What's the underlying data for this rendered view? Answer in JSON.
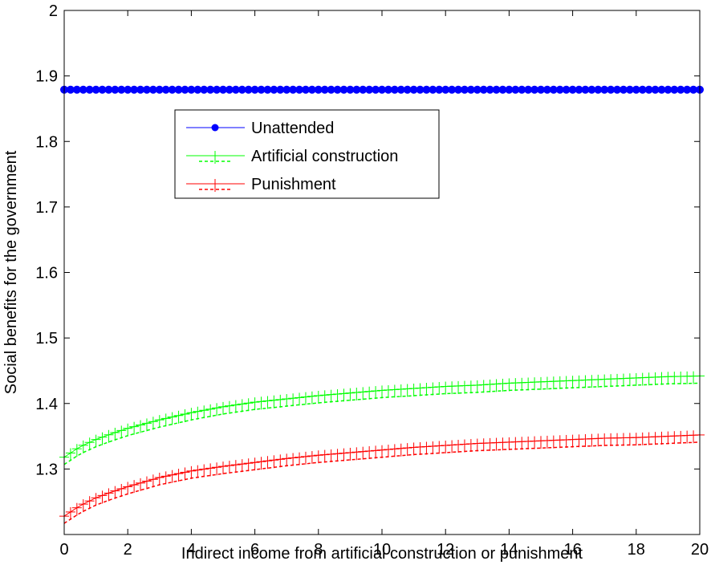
{
  "chart_data": {
    "type": "line",
    "xlabel": "Indirect income from artificial construction or punishment",
    "ylabel": "Social benefits for the government",
    "xlim": [
      0,
      20
    ],
    "ylim": [
      1.2,
      2.0
    ],
    "x_ticks": [
      0,
      2,
      4,
      6,
      8,
      10,
      12,
      14,
      16,
      18,
      20
    ],
    "y_ticks": [
      1.3,
      1.4,
      1.5,
      1.6,
      1.7,
      1.8,
      1.9,
      2.0
    ],
    "x_tick_labels": [
      "0",
      "2",
      "4",
      "6",
      "8",
      "10",
      "12",
      "14",
      "16",
      "18",
      "20"
    ],
    "y_tick_labels": [
      "1.3",
      "1.4",
      "1.5",
      "1.6",
      "1.7",
      "1.8",
      "1.9",
      "2"
    ],
    "grid": false,
    "legend_position": "upper-left-center",
    "series": [
      {
        "name": "Unattended",
        "color": "#0000ff",
        "marker": "circle",
        "x": [
          0,
          20
        ],
        "y": [
          1.879,
          1.879
        ]
      },
      {
        "name": "Artificial construction",
        "color": "#00ff00",
        "marker": "plus",
        "x": [
          0,
          0.5,
          1,
          1.5,
          2,
          3,
          4,
          5,
          6,
          7,
          8,
          9,
          10,
          11,
          12,
          13,
          14,
          15,
          16,
          17,
          18,
          19,
          20
        ],
        "y": [
          1.318,
          1.334,
          1.345,
          1.354,
          1.362,
          1.375,
          1.386,
          1.395,
          1.402,
          1.407,
          1.412,
          1.416,
          1.42,
          1.423,
          1.426,
          1.428,
          1.431,
          1.433,
          1.435,
          1.437,
          1.439,
          1.441,
          1.442
        ]
      },
      {
        "name": "Punishment",
        "color": "#ff0000",
        "marker": "plus",
        "x": [
          0,
          0.5,
          1,
          1.5,
          2,
          3,
          4,
          5,
          6,
          7,
          8,
          9,
          10,
          11,
          12,
          13,
          14,
          15,
          16,
          17,
          18,
          19,
          20
        ],
        "y": [
          1.228,
          1.244,
          1.256,
          1.265,
          1.273,
          1.287,
          1.297,
          1.304,
          1.31,
          1.316,
          1.321,
          1.325,
          1.329,
          1.333,
          1.336,
          1.339,
          1.341,
          1.343,
          1.345,
          1.347,
          1.348,
          1.35,
          1.352
        ]
      }
    ]
  }
}
